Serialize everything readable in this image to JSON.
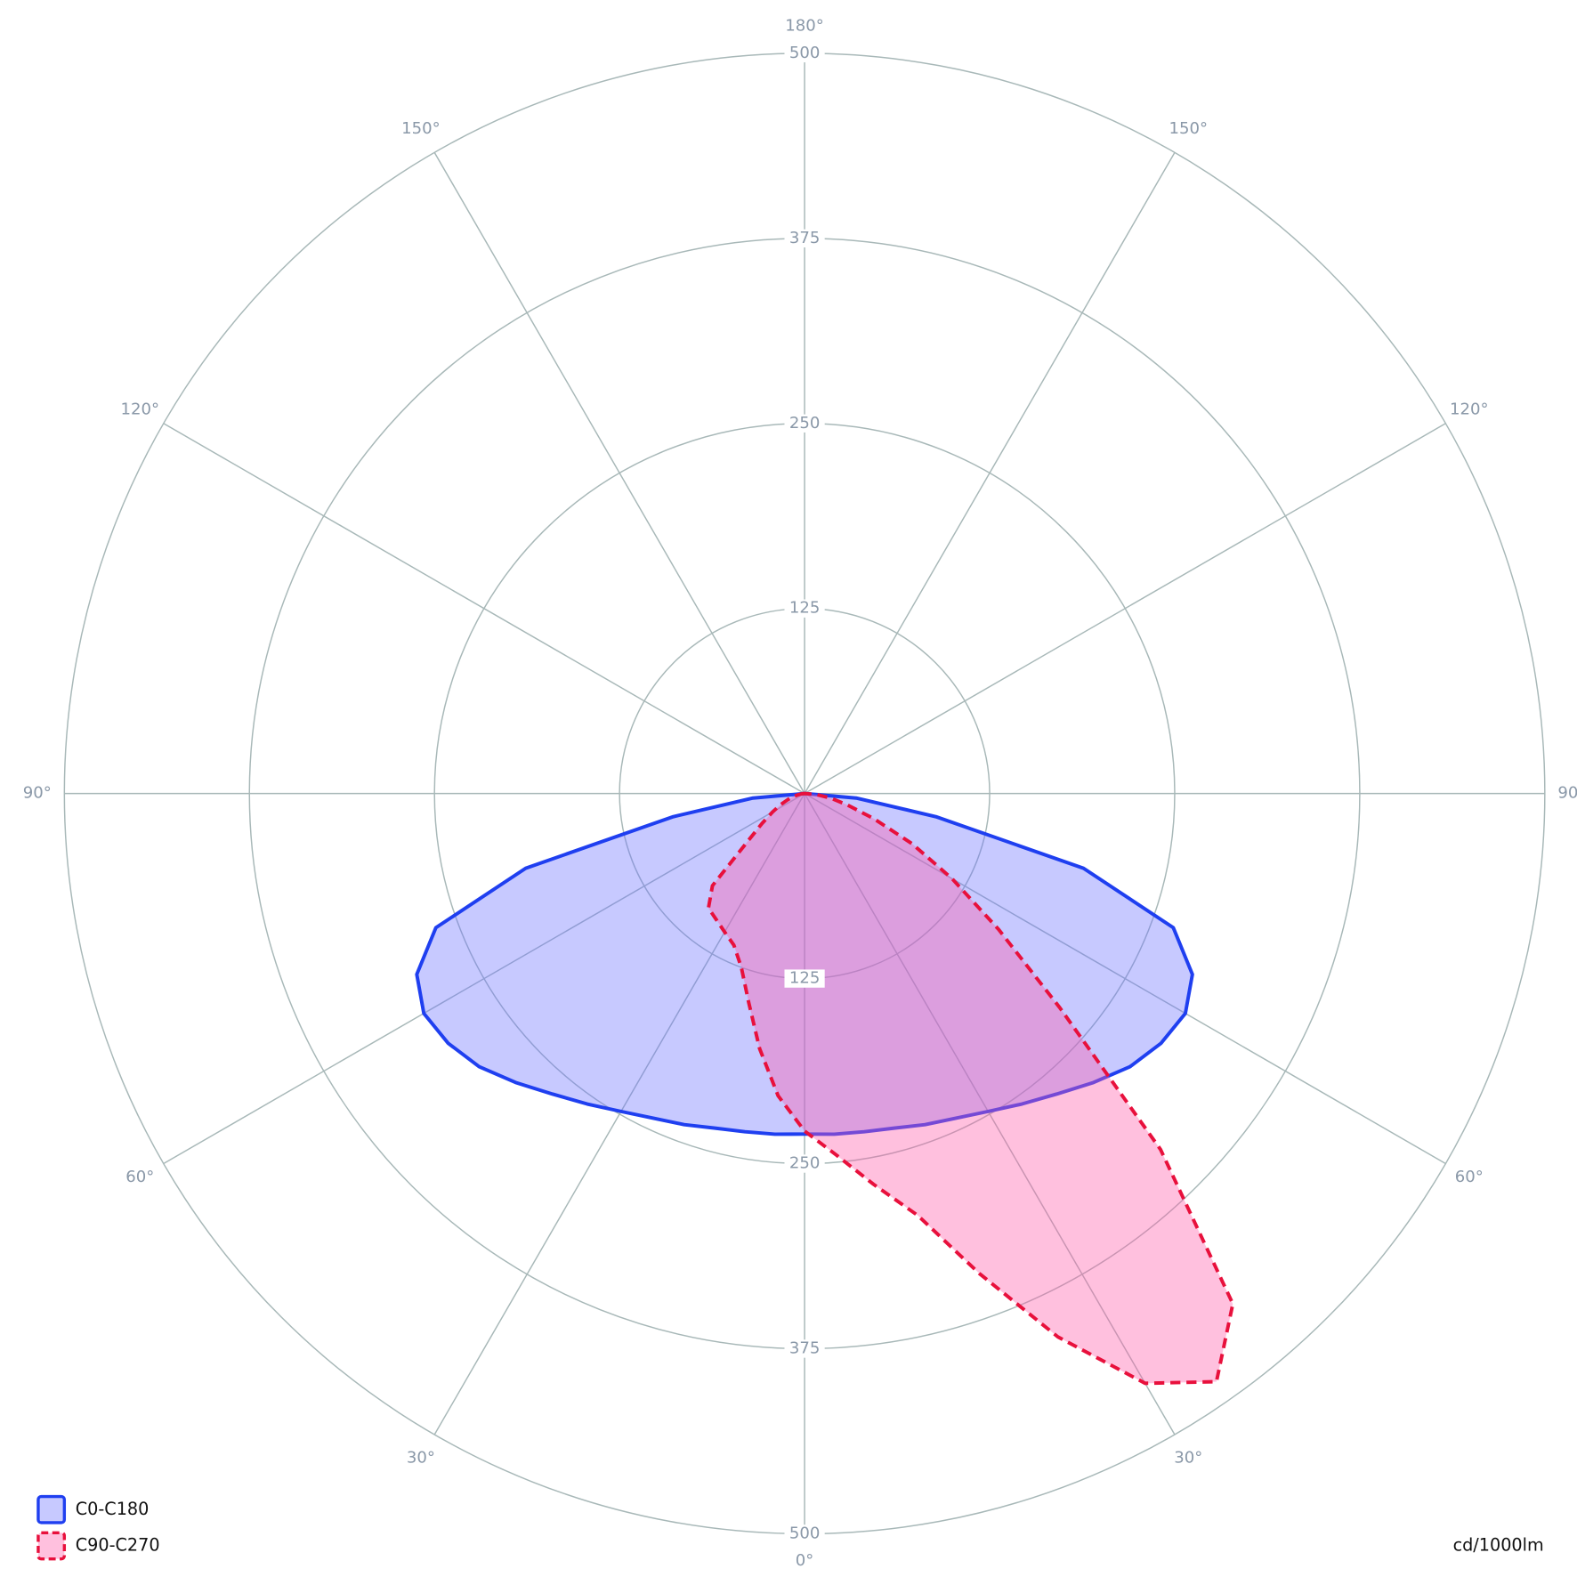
{
  "chart_data": {
    "type": "polar",
    "unit_label": "cd/1000lm",
    "x": [
      -90,
      -85,
      -80,
      -75,
      -70,
      -65,
      -60,
      -55,
      -50,
      -45,
      -40,
      -35,
      -30,
      -25,
      -20,
      -15,
      -10,
      -5,
      0,
      5,
      10,
      15,
      20,
      25,
      30,
      35,
      40,
      45,
      50,
      55,
      60,
      65,
      70,
      75,
      80,
      85,
      90
    ],
    "series": [
      {
        "name": "C0-C180",
        "color": "#1f3ff0",
        "fill": "#6b70ff",
        "dashed": false,
        "values": [
          0,
          35,
          90,
          195,
          265,
          289,
          297,
          294,
          287,
          276,
          265,
          256,
          248,
          242,
          238,
          234,
          232,
          231,
          230,
          231,
          232,
          234,
          238,
          242,
          248,
          256,
          265,
          276,
          287,
          294,
          297,
          289,
          265,
          195,
          90,
          35,
          0
        ]
      },
      {
        "name": "C90-C270",
        "color": "#e8103c",
        "fill": "#ff5aa8",
        "dashed": true,
        "values": [
          0,
          2,
          4,
          8,
          12,
          18,
          25,
          35,
          50,
          88,
          101,
          104,
          108,
          113,
          125,
          146,
          175,
          205,
          228,
          245,
          268,
          295,
          345,
          405,
          460,
          485,
          450,
          340,
          225,
          160,
          115,
          80,
          50,
          30,
          18,
          8,
          0
        ]
      }
    ],
    "rlim": [
      0,
      500
    ],
    "rticks": [
      125,
      250,
      375,
      500
    ],
    "angle_ticks": [
      {
        "value": 0,
        "label": "0°"
      },
      {
        "value": 30,
        "label": "30°"
      },
      {
        "value": 60,
        "label": "60°"
      },
      {
        "value": 90,
        "label": "90°"
      },
      {
        "value": 120,
        "label": "120°"
      },
      {
        "value": 150,
        "label": "150°"
      },
      {
        "value": 180,
        "label": "180°"
      },
      {
        "value": -150,
        "label": "150°"
      },
      {
        "value": -120,
        "label": "120°"
      },
      {
        "value": -90,
        "label": "90°"
      },
      {
        "value": -60,
        "label": "60°"
      },
      {
        "value": -30,
        "label": "30°"
      }
    ],
    "grid": true,
    "legend": "lower left"
  }
}
